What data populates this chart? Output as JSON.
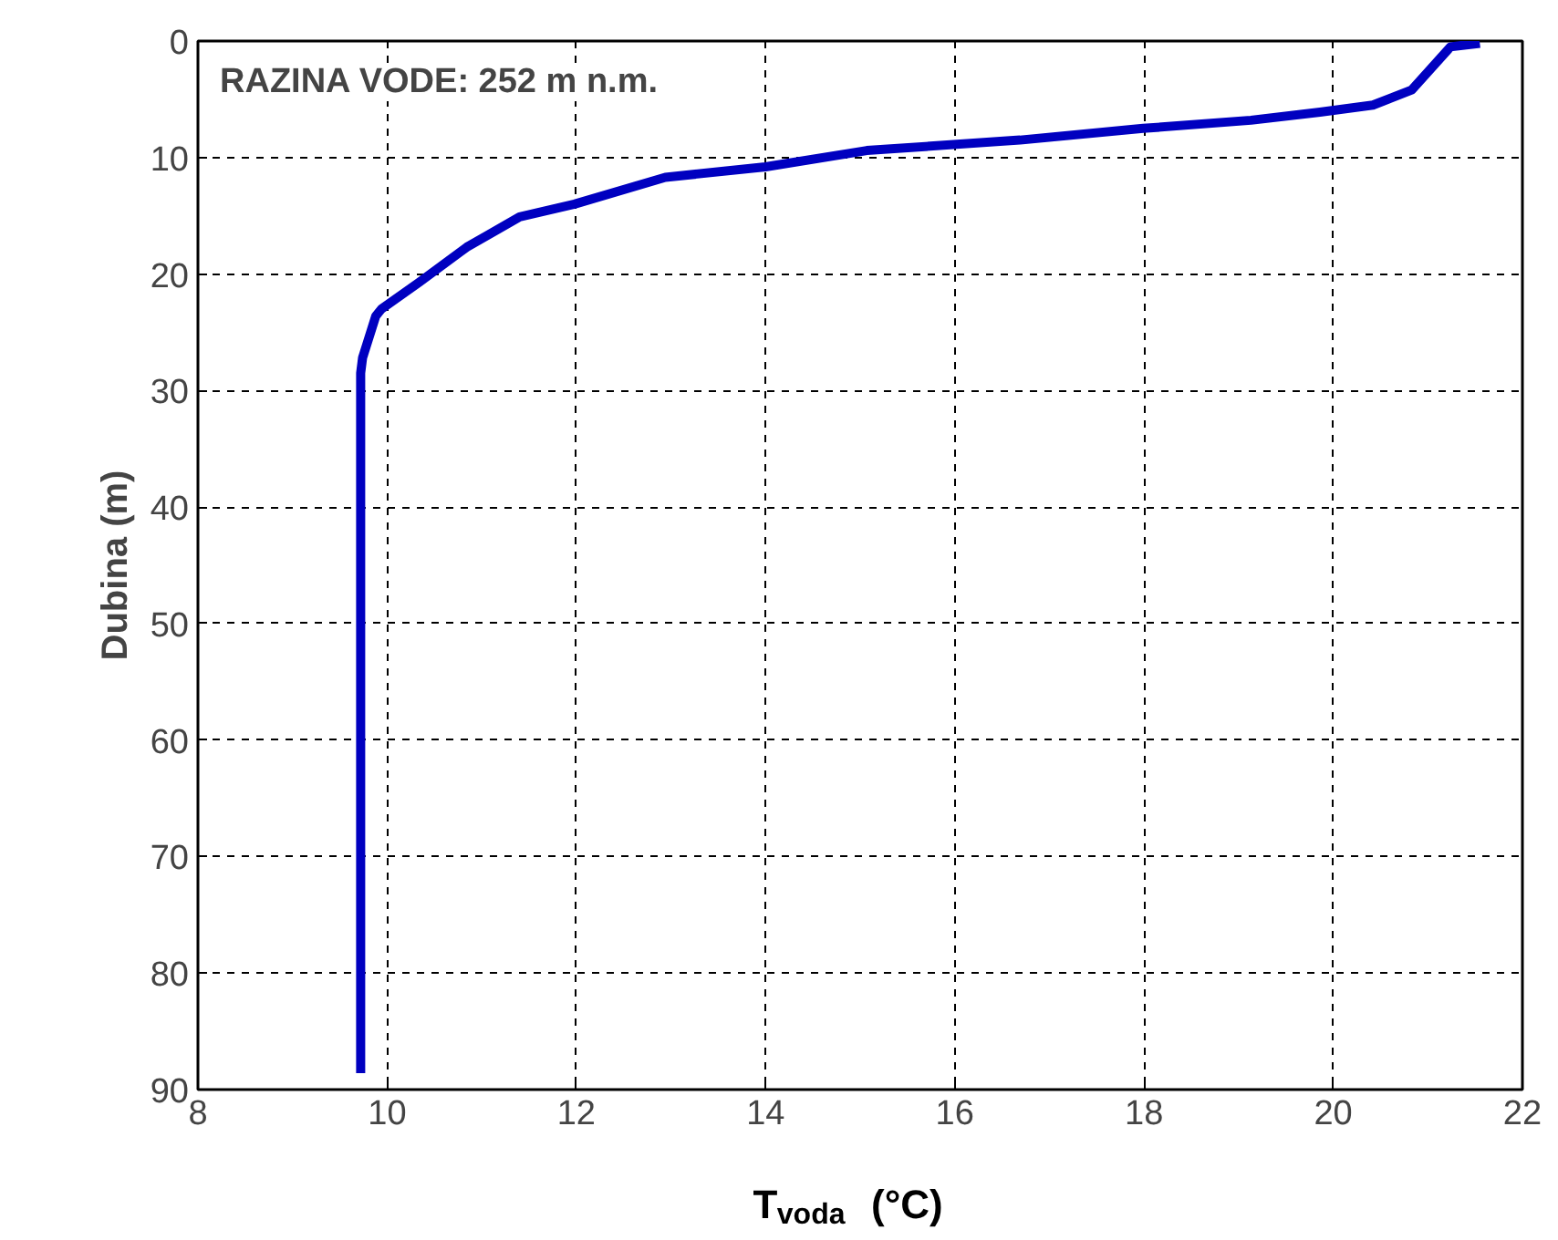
{
  "chart_data": {
    "type": "line",
    "xlabel": "T$_{voda}$  (°C)",
    "ylabel": "Dubina (m)",
    "annotations": [
      "RAZINA VODE: 252 m n.m."
    ],
    "x": [
      21.55,
      21.24,
      20.83,
      20.42,
      19.86,
      19.13,
      17.99,
      16.69,
      15.07,
      14.0,
      12.94,
      11.98,
      11.4,
      10.84,
      10.34,
      9.94,
      9.88,
      9.74,
      9.72,
      9.72
    ],
    "series": [
      {
        "color": "#0000c0",
        "values": [
          0.2,
          0.5,
          4.2,
          5.5,
          6.1,
          6.8,
          7.5,
          8.5,
          9.4,
          10.8,
          11.7,
          14.0,
          15.1,
          17.7,
          20.7,
          23.0,
          23.6,
          27.2,
          28.5,
          88.6
        ]
      }
    ],
    "xlim": [
      8,
      22
    ],
    "ylim": [
      90,
      0
    ],
    "xticks": [
      8,
      10,
      12,
      14,
      16,
      18,
      20,
      22
    ],
    "yticks": [
      0,
      10,
      20,
      30,
      40,
      50,
      60,
      70,
      80,
      90
    ],
    "grid": true,
    "marker": "none",
    "line_style": "solid"
  }
}
